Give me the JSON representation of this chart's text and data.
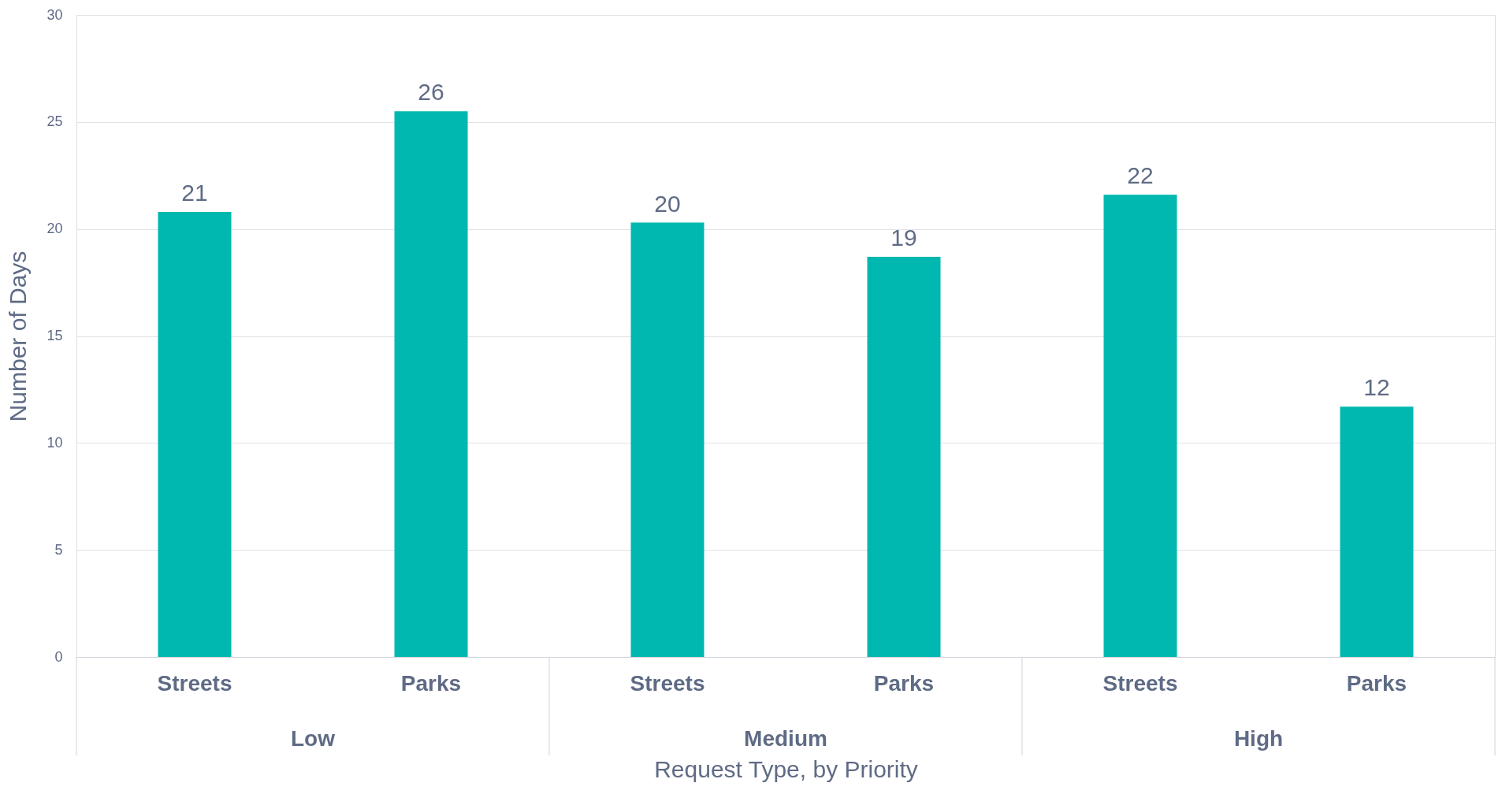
{
  "chart_data": {
    "type": "bar",
    "xlabel": "Request Type, by Priority",
    "ylabel": "Number of Days",
    "categories": [
      "Streets",
      "Parks",
      "Streets",
      "Parks",
      "Streets",
      "Parks"
    ],
    "values": [
      20.8,
      25.5,
      20.3,
      18.7,
      21.6,
      11.7
    ],
    "value_labels": [
      "21",
      "26",
      "20",
      "19",
      "22",
      "12"
    ],
    "color": "#00b8b0",
    "ylim": [
      0,
      30
    ],
    "yticks": [
      0,
      5,
      10,
      15,
      20,
      25,
      30
    ],
    "grid": "y",
    "annotations": [
      "Low",
      "Medium",
      "High"
    ]
  }
}
